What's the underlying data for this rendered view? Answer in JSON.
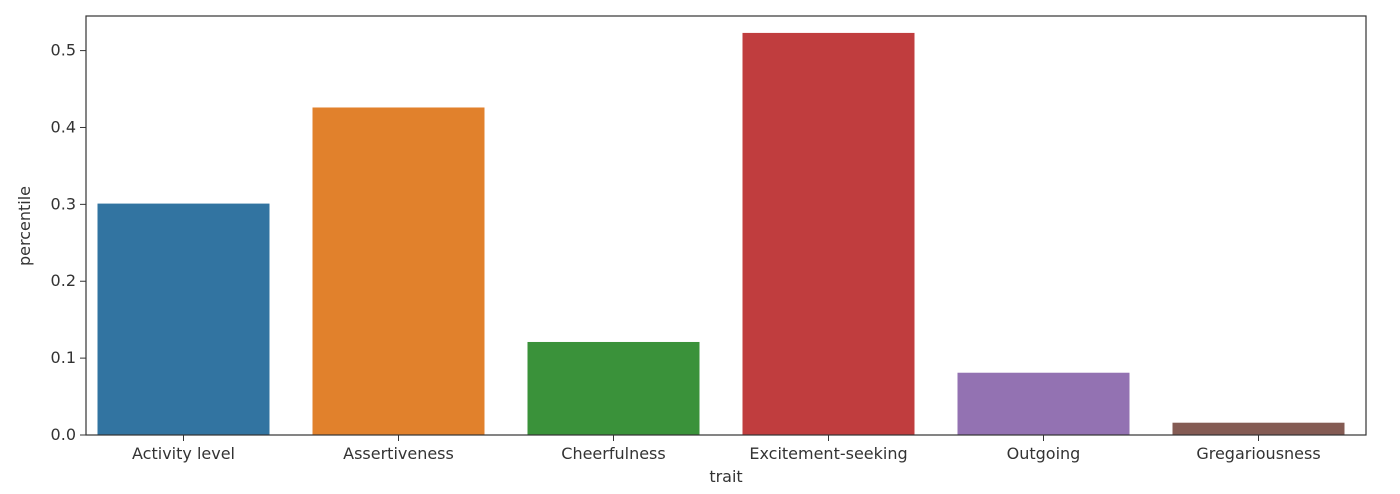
{
  "chart_data": {
    "type": "bar",
    "title": "",
    "xlabel": "trait",
    "ylabel": "percentile",
    "categories": [
      "Activity level",
      "Assertiveness",
      "Cheerfulness",
      "Excitement-seeking",
      "Outgoing",
      "Gregariousness"
    ],
    "values": [
      0.301,
      0.426,
      0.121,
      0.523,
      0.081,
      0.016
    ],
    "ylim": [
      0,
      0.545
    ],
    "yticks": [
      "0.0",
      "0.1",
      "0.2",
      "0.3",
      "0.4",
      "0.5"
    ],
    "grid": false,
    "legend": "none",
    "colors": [
      "#3274a1",
      "#e1812c",
      "#3a923a",
      "#c03d3e",
      "#9372b2",
      "#845b53"
    ]
  }
}
